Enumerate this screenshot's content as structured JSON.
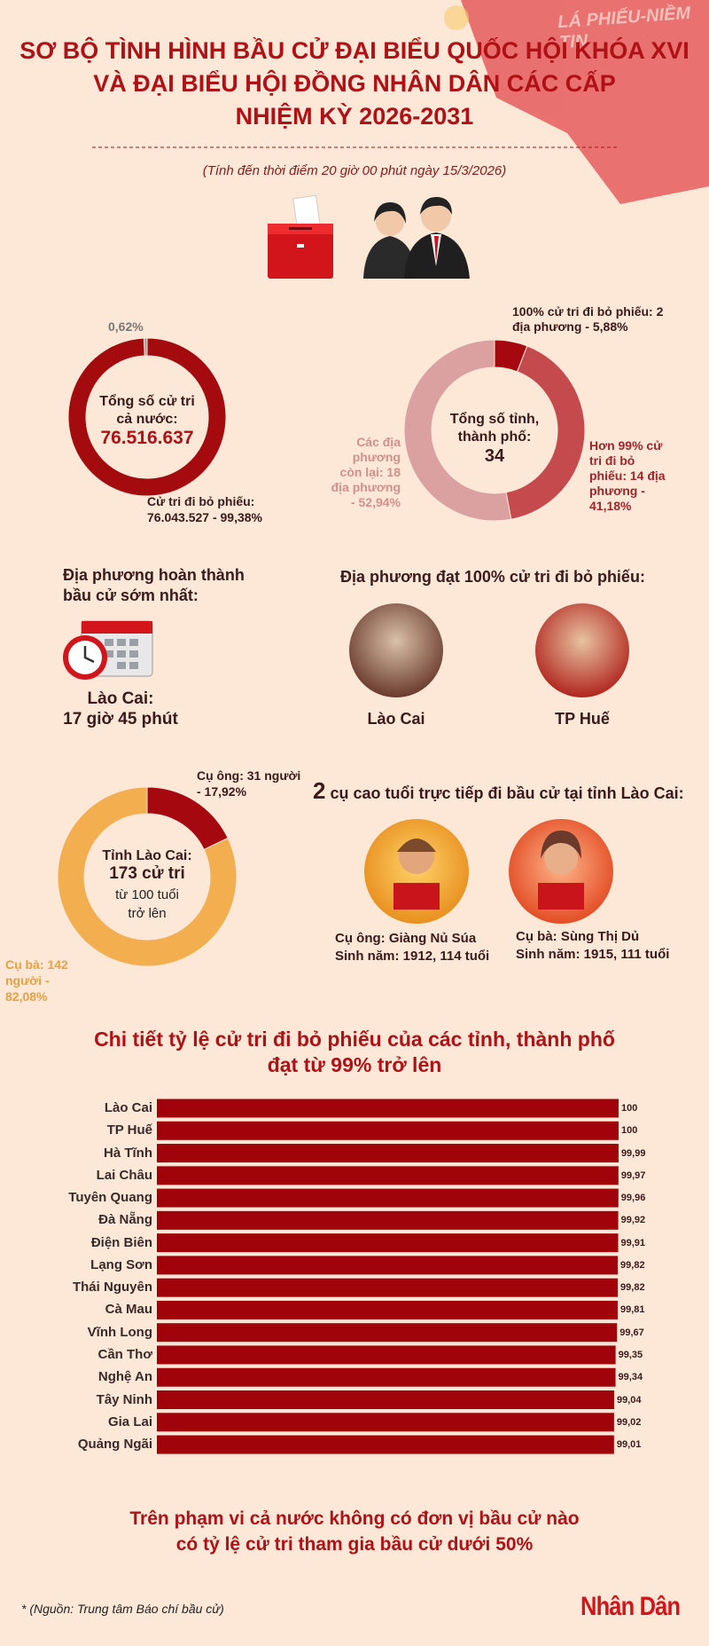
{
  "header": {
    "title": [
      "SƠ BỘ TÌNH HÌNH BẦU CỬ ĐẠI BIỂU QUỐC HỘI KHÓA XVI",
      "VÀ ĐẠI BIỂU HỘI ĐỒNG NHÂN DÂN CÁC CẤP",
      "NHIỆM KỲ 2026-2031"
    ],
    "subtitle": "(Tính đến thời điểm 20 giờ 00 phút ngày 15/3/2026)",
    "banner": "LÁ PHIẾU-NIỀM TIN"
  },
  "chart_data": [
    {
      "type": "donut",
      "center": [
        "Tổng số cử tri cả nước:",
        "76.516.637"
      ],
      "values": [
        99.38,
        0.62
      ],
      "labels": [
        "Cử tri đi bỏ phiếu: 76.043.527 - 99,38%",
        "0,62%"
      ],
      "colors": [
        "#a30b0f",
        "#9e9e9e"
      ]
    },
    {
      "type": "donut",
      "center": [
        "Tổng số tỉnh, thành phố:",
        "34"
      ],
      "values": [
        5.88,
        41.18,
        52.94
      ],
      "labels": [
        "100% cử tri đi bỏ phiếu: 2 địa phương - 5,88%",
        "Hơn 99% cử tri đi bỏ phiếu: 14 địa phương - 41,18%",
        "Các địa phương còn lại: 18 địa phương - 52,94%"
      ],
      "colors": [
        "#a5080e",
        "#c44a4d",
        "#dba0a0"
      ]
    },
    {
      "type": "donut",
      "center": [
        "Tỉnh Lào Cai:",
        "173 cử tri",
        "từ 100 tuổi trở lên"
      ],
      "values": [
        17.92,
        82.08
      ],
      "labels": [
        "Cụ ông: 31 người - 17,92%",
        "Cụ bà: 142 người - 82,08%"
      ],
      "colors": [
        "#a5080e",
        "#f2ae4f"
      ]
    },
    {
      "type": "bar",
      "title": [
        "Chi tiết tỷ lệ cử tri đi bỏ phiếu của các tỉnh, thành phố",
        "đạt từ 99% trở lên"
      ],
      "categories": [
        "Lào Cai",
        "TP Huế",
        "Hà Tĩnh",
        "Lai Châu",
        "Tuyên Quang",
        "Đà Nẵng",
        "Điện Biên",
        "Lạng Sơn",
        "Thái Nguyên",
        "Cà Mau",
        "Vĩnh Long",
        "Cần Thơ",
        "Nghệ An",
        "Tây Ninh",
        "Gia Lai",
        "Quảng Ngãi"
      ],
      "values": [
        100,
        100,
        99.99,
        99.97,
        99.96,
        99.92,
        99.91,
        99.82,
        99.82,
        99.81,
        99.67,
        99.35,
        99.34,
        99.04,
        99.02,
        99.01
      ],
      "value_labels": [
        "100",
        "100",
        "99,99",
        "99,97",
        "99,96",
        "99,92",
        "99,91",
        "99,82",
        "99,82",
        "99,81",
        "99,67",
        "99,35",
        "99,34",
        "99,04",
        "99,02",
        "99,01"
      ],
      "color": "#a0040a",
      "xlim": [
        0,
        100
      ]
    }
  ],
  "earliest": {
    "heading": "Địa phương hoàn thành bầu cử sớm nhất:",
    "place": "Lào Cai:",
    "time": "17 giờ 45 phút"
  },
  "full_turnout": {
    "heading": "Địa phương đạt 100% cử tri đi bỏ phiếu:",
    "places": [
      "Lào Cai",
      "TP Huế"
    ]
  },
  "elders": {
    "heading": "2 cụ cao tuổi trực tiếp đi bầu cử tại tỉnh Lào Cai:",
    "people": [
      {
        "name": "Cụ ông: Giàng Nủ Súa",
        "born": "Sinh năm: 1912, 114 tuổi"
      },
      {
        "name": "Cụ bà: Sùng Thị Dủ",
        "born": "Sinh năm: 1915, 111 tuổi"
      }
    ]
  },
  "conclusion": [
    "Trên phạm vi cả nước không có đơn vị bầu cử nào",
    "có tỷ lệ cử tri tham gia bầu cử dưới 50%"
  ],
  "footer": {
    "source": "* (Nguồn: Trung tâm Báo chí bầu cử)",
    "logo": "Nhân Dân"
  }
}
